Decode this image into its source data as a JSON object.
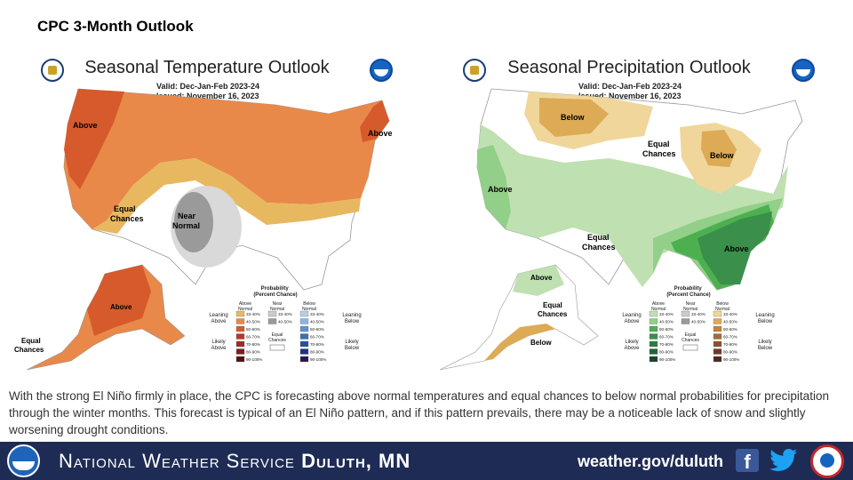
{
  "slide": {
    "title": "CPC 3-Month Outlook",
    "caption": "With the strong El Niño firmly in place, the CPC is forecasting above normal temperatures and equal chances to below normal probabilities for precipitation through the winter months. This forecast is typical of an El Niño pattern, and if this pattern prevails, there may be a noticeable lack of snow and slightly worsening drought conditions."
  },
  "temperature_map": {
    "title": "Seasonal Temperature Outlook",
    "valid": "Valid:  Dec-Jan-Feb 2023-24",
    "issued": "Issued:  November 16, 2023",
    "region_labels": {
      "above_west": "Above",
      "above_northeast": "Above",
      "equal_chances": "Equal\nChances",
      "near_normal": "Near\nNormal",
      "above_alaska": "Above",
      "equal_chances_alaska": "Equal\nChances"
    },
    "legend": {
      "title": "Probability\n(Percent Chance)",
      "col_above": "Above\nNormal",
      "col_near": "Near\nNormal",
      "col_below": "Below\nNormal",
      "leaning_above": "Leaning\nAbove",
      "likely_above": "Likely\nAbove",
      "leaning_below": "Leaning\nBelow",
      "likely_below": "Likely\nBelow",
      "equal_chances": "Equal\nChances",
      "above_ranges": [
        "33-40%",
        "40-50%",
        "50-60%",
        "60-70%",
        "70-80%",
        "80-90%",
        "90-100%"
      ],
      "near_ranges": [
        "33-40%",
        "40-50%"
      ],
      "below_ranges": [
        "33-40%",
        "40-50%",
        "50-60%",
        "60-70%",
        "70-80%",
        "80-90%",
        "90-100%"
      ],
      "above_colors": [
        "#e8b860",
        "#e8894a",
        "#d65a2c",
        "#b8352a",
        "#9c2a2a",
        "#7a1f22",
        "#4f1414"
      ],
      "near_colors": [
        "#cccccc",
        "#999999"
      ],
      "below_colors": [
        "#b6cfe8",
        "#8fb4de",
        "#5c93d0",
        "#3a6fb4",
        "#2a4f9a",
        "#1e347a",
        "#2a1650"
      ]
    }
  },
  "precipitation_map": {
    "title": "Seasonal Precipitation Outlook",
    "valid": "Valid:  Dec-Jan-Feb 2023-24",
    "issued": "Issued:  November 16, 2023",
    "region_labels": {
      "below_north": "Below",
      "equal_chances_center": "Equal\nChances",
      "below_greatlakes": "Below",
      "above_west": "Above",
      "equal_chances_south": "Equal\nChances",
      "above_southeast": "Above",
      "above_alaska": "Above",
      "equal_chances_alaska": "Equal\nChances",
      "below_alaska": "Below"
    },
    "legend": {
      "title": "Probability\n(Percent Chance)",
      "col_above": "Above\nNormal",
      "col_near": "Near\nNormal",
      "col_below": "Below\nNormal",
      "leaning_above": "Leaning\nAbove",
      "likely_above": "Likely\nAbove",
      "leaning_below": "Leaning\nBelow",
      "likely_below": "Likely\nBelow",
      "equal_chances": "Equal\nChances",
      "above_ranges": [
        "33-40%",
        "40-50%",
        "50-60%",
        "60-70%",
        "70-80%",
        "80-90%",
        "90-100%"
      ],
      "near_ranges": [
        "33-40%",
        "40-50%"
      ],
      "below_ranges": [
        "33-40%",
        "40-50%",
        "50-60%",
        "60-70%",
        "70-80%",
        "80-90%",
        "90-100%"
      ],
      "above_colors": [
        "#bfe0b0",
        "#92cf88",
        "#4cb050",
        "#3a8f4a",
        "#2f7a45",
        "#236338",
        "#17462a"
      ],
      "near_colors": [
        "#cccccc",
        "#999999"
      ],
      "below_colors": [
        "#f0d69a",
        "#ddaa55",
        "#c6823a",
        "#a56a38",
        "#8a5230",
        "#6e3a26",
        "#4e2a1e"
      ]
    }
  },
  "footer": {
    "org": "National Weather Service",
    "office": "Duluth, MN",
    "link": "weather.gov/duluth"
  },
  "icons": [
    "doc-seal-icon",
    "noaa-logo-icon",
    "facebook-icon",
    "twitter-icon",
    "weather-ready-nation-icon"
  ]
}
